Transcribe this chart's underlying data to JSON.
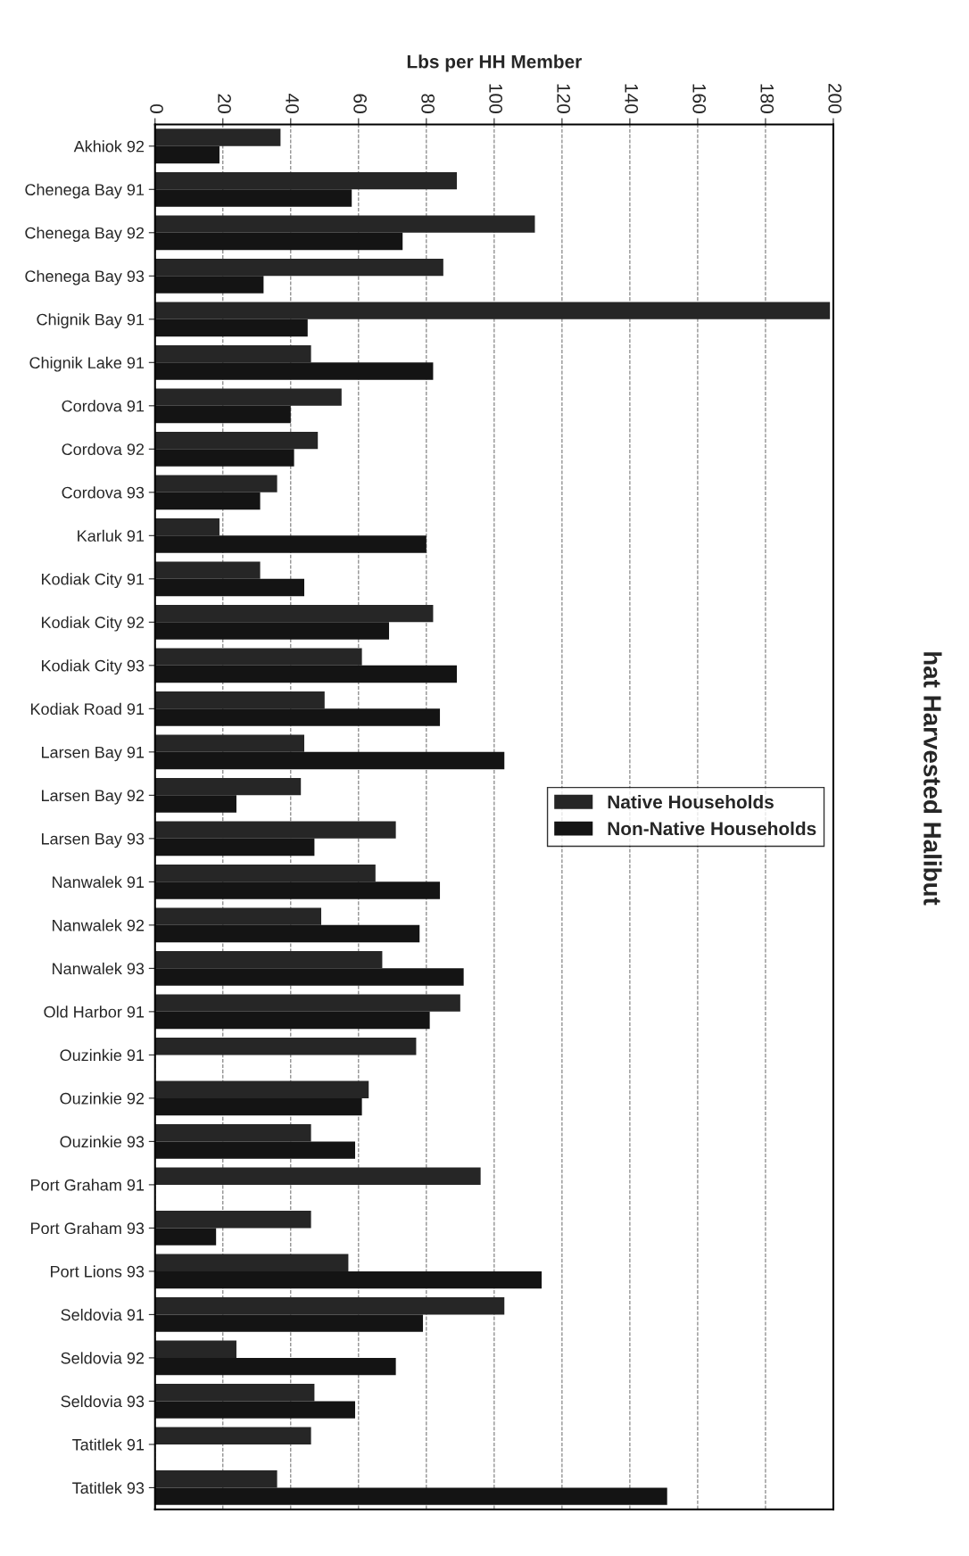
{
  "chart_data": {
    "type": "bar",
    "orientation": "horizontal",
    "title": "hat Harvested Halibut",
    "xlabel": "Lbs per HH Member",
    "categories": [
      "Akhiok 92",
      "Chenega Bay 91",
      "Chenega Bay 92",
      "Chenega Bay 93",
      "Chignik Bay 91",
      "Chignik Lake 91",
      "Cordova 91",
      "Cordova 92",
      "Cordova 93",
      "Karluk 91",
      "Kodiak City 91",
      "Kodiak City 92",
      "Kodiak City 93",
      "Kodiak Road 91",
      "Larsen Bay 91",
      "Larsen Bay 92",
      "Larsen Bay 93",
      "Nanwalek 91",
      "Nanwalek 92",
      "Nanwalek 93",
      "Old Harbor 91",
      "Ouzinkie 91",
      "Ouzinkie 92",
      "Ouzinkie 93",
      "Port Graham 91",
      "Port Graham 93",
      "Port Lions 93",
      "Seldovia 91",
      "Seldovia 92",
      "Seldovia 93",
      "Tatitlek 91",
      "Tatitlek 93"
    ],
    "series": [
      {
        "name": "Native Households",
        "color": "#262626",
        "values": [
          37,
          89,
          112,
          85,
          199,
          46,
          55,
          48,
          36,
          19,
          31,
          82,
          61,
          50,
          44,
          43,
          71,
          65,
          49,
          67,
          90,
          77,
          63,
          46,
          96,
          46,
          57,
          103,
          24,
          47,
          46,
          36
        ]
      },
      {
        "name": "Non-Native Households",
        "color": "#141414",
        "values": [
          19,
          58,
          73,
          32,
          45,
          82,
          40,
          41,
          31,
          80,
          44,
          69,
          89,
          84,
          103,
          24,
          47,
          84,
          78,
          91,
          81,
          null,
          61,
          59,
          null,
          18,
          114,
          79,
          71,
          59,
          null,
          151
        ]
      }
    ],
    "xlim": [
      0,
      200
    ],
    "xticks": [
      0,
      20,
      40,
      60,
      80,
      100,
      120,
      140,
      160,
      180,
      200
    ],
    "grid": "x",
    "legend": "right"
  }
}
